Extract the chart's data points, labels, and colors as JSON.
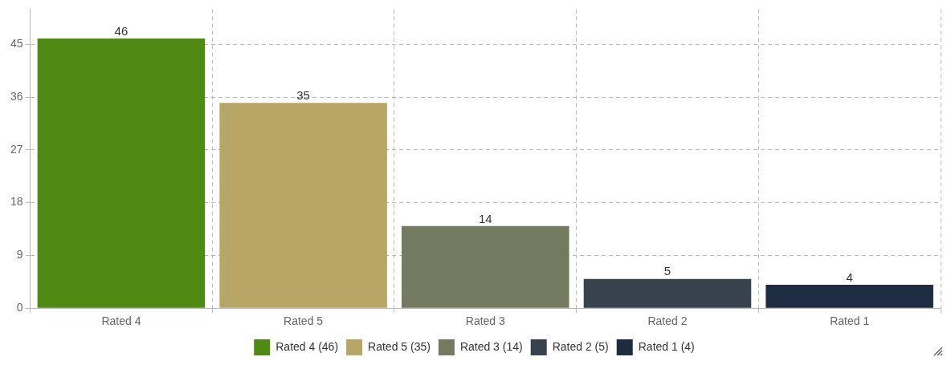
{
  "chart_data": {
    "type": "bar",
    "categories": [
      "Rated 4",
      "Rated 5",
      "Rated 3",
      "Rated 2",
      "Rated 1"
    ],
    "stacked": true,
    "series": [
      {
        "name": "Rated 4 (46)",
        "color": "#4e8a14",
        "values": [
          46,
          null,
          null,
          null,
          null
        ]
      },
      {
        "name": "Rated 5 (35)",
        "color": "#b8a667",
        "values": [
          null,
          35,
          null,
          null,
          null
        ]
      },
      {
        "name": "Rated 3 (14)",
        "color": "#747a60",
        "values": [
          null,
          null,
          14,
          null,
          null
        ]
      },
      {
        "name": "Rated 2 (5)",
        "color": "#38424f",
        "values": [
          null,
          null,
          null,
          5,
          null
        ]
      },
      {
        "name": "Rated 1 (4)",
        "color": "#1f2b40",
        "values": [
          null,
          null,
          null,
          null,
          4
        ]
      }
    ],
    "ylim": [
      0,
      51
    ],
    "yticks": [
      0,
      9,
      18,
      27,
      36,
      45
    ],
    "grid": true,
    "legend": "bottom",
    "data_labels": true
  }
}
